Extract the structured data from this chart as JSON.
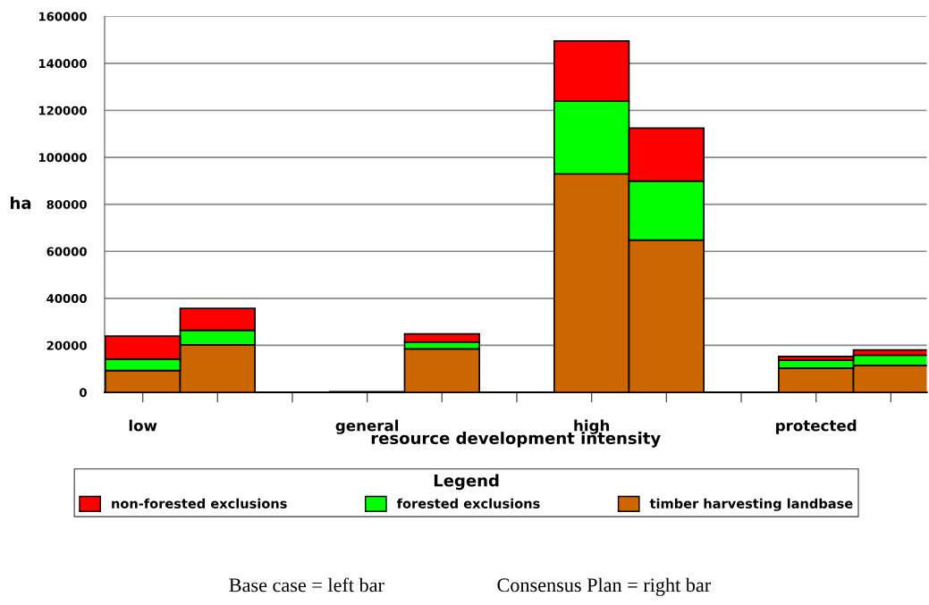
{
  "chart_data": {
    "type": "bar",
    "stacked": true,
    "categories": [
      "low",
      null,
      null,
      "general",
      null,
      null,
      "high",
      null,
      null,
      "protected",
      null
    ],
    "series": [
      {
        "name": "timber harvesting landbase",
        "color": "#cc6600",
        "values": [
          9300,
          20200,
          null,
          300,
          18500,
          null,
          93000,
          64800,
          null,
          10300,
          11500
        ]
      },
      {
        "name": "forested exclusions",
        "color": "#00ff00",
        "values": [
          4800,
          6200,
          null,
          null,
          2900,
          null,
          30900,
          25100,
          null,
          3400,
          4300
        ]
      },
      {
        "name": "non-forested exclusions",
        "color": "#ff0000",
        "values": [
          9800,
          9300,
          null,
          null,
          3500,
          null,
          25600,
          22500,
          null,
          1600,
          2200
        ]
      }
    ],
    "xlabel": "resource development intensity",
    "ylabel": "ha",
    "ylim": [
      0,
      160000
    ],
    "yticks": [
      0,
      20000,
      40000,
      60000,
      80000,
      100000,
      120000,
      140000,
      160000
    ],
    "grid": "y",
    "legend": "bottom",
    "legend_title": "Legend",
    "annotations": [
      "Base case = left bar",
      "Consensus Plan = right bar"
    ]
  }
}
